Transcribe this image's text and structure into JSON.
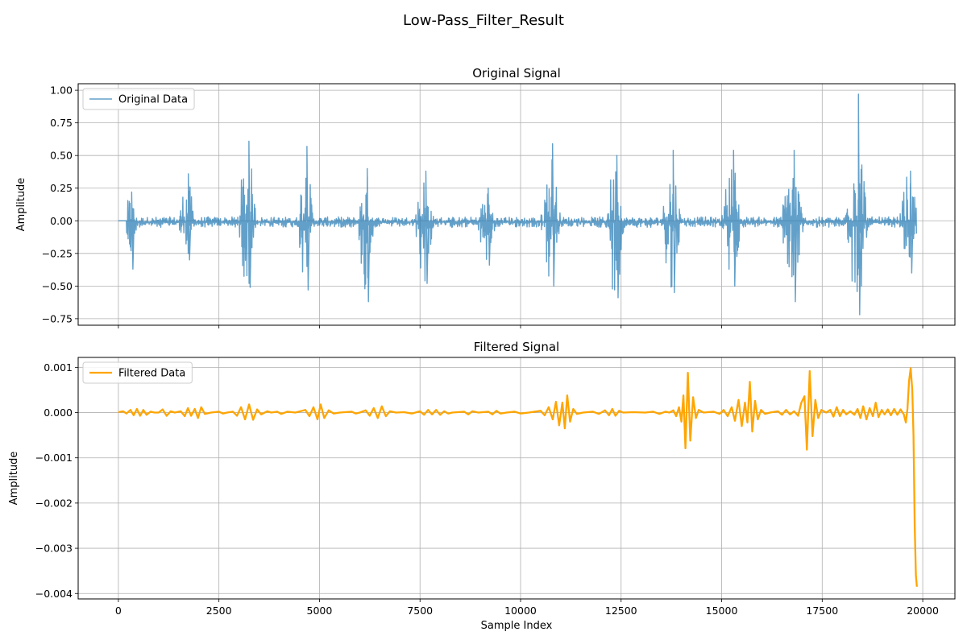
{
  "figure": {
    "suptitle": "Low-Pass_Filter_Result"
  },
  "colors": {
    "original": "#1f77b4",
    "filtered": "#ffa500",
    "grid": "#b0b0b0",
    "axes": "#000000",
    "legend_border": "#cccccc"
  },
  "chart_data": [
    {
      "type": "line",
      "title": "Original Signal",
      "xlabel": "",
      "ylabel": "Amplitude",
      "xlim": [
        -1000,
        20800
      ],
      "ylim": [
        -0.8,
        1.05
      ],
      "xticks": [
        0,
        2500,
        5000,
        7500,
        10000,
        12500,
        15000,
        17500,
        20000
      ],
      "xtick_labels": [],
      "yticks": [
        -0.75,
        -0.5,
        -0.25,
        0.0,
        0.25,
        0.5,
        0.75,
        1.0
      ],
      "ytick_labels": [
        "−0.75",
        "−0.50",
        "−0.25",
        "0.00",
        "0.25",
        "0.50",
        "0.75",
        "1.00"
      ],
      "grid": true,
      "legend": "upper-left",
      "series": [
        {
          "name": "Original Data",
          "color": "#1f77b4",
          "alpha": 0.7,
          "envelope": {
            "note": "approximate burst envelope read from plot",
            "x_start": 0,
            "x_end": 19850,
            "bursts": [
              {
                "center": 300,
                "width": 200,
                "high": 0.22,
                "low": -0.37
              },
              {
                "center": 1700,
                "width": 260,
                "high": 0.36,
                "low": -0.3
              },
              {
                "center": 3200,
                "width": 300,
                "high": 0.61,
                "low": -0.51
              },
              {
                "center": 4650,
                "width": 250,
                "high": 0.57,
                "low": -0.53
              },
              {
                "center": 6150,
                "width": 250,
                "high": 0.4,
                "low": -0.62
              },
              {
                "center": 7600,
                "width": 300,
                "high": 0.38,
                "low": -0.48
              },
              {
                "center": 9150,
                "width": 300,
                "high": 0.25,
                "low": -0.34
              },
              {
                "center": 10750,
                "width": 300,
                "high": 0.59,
                "low": -0.5
              },
              {
                "center": 12350,
                "width": 300,
                "high": 0.5,
                "low": -0.59
              },
              {
                "center": 13750,
                "width": 300,
                "high": 0.54,
                "low": -0.55
              },
              {
                "center": 15250,
                "width": 300,
                "high": 0.54,
                "low": -0.5
              },
              {
                "center": 16750,
                "width": 350,
                "high": 0.54,
                "low": -0.62
              },
              {
                "center": 18350,
                "width": 350,
                "high": 0.97,
                "low": -0.72
              },
              {
                "center": 19650,
                "width": 300,
                "high": 0.38,
                "low": -0.4
              }
            ],
            "baseline_noise": 0.04
          }
        }
      ]
    },
    {
      "type": "line",
      "title": "Filtered Signal",
      "xlabel": "Sample Index",
      "ylabel": "Amplitude",
      "xlim": [
        -1000,
        20800
      ],
      "ylim": [
        -0.00412,
        0.00122
      ],
      "xticks": [
        0,
        2500,
        5000,
        7500,
        10000,
        12500,
        15000,
        17500,
        20000
      ],
      "xtick_labels": [
        "0",
        "2500",
        "5000",
        "7500",
        "10000",
        "12500",
        "15000",
        "17500",
        "20000"
      ],
      "yticks": [
        -0.004,
        -0.003,
        -0.002,
        -0.001,
        0.0,
        0.001
      ],
      "ytick_labels": [
        "−0.004",
        "−0.003",
        "−0.002",
        "−0.001",
        "0.000",
        "0.001"
      ],
      "grid": true,
      "legend": "upper-left",
      "series": [
        {
          "name": "Filtered Data",
          "color": "#ffa500",
          "points": [
            [
              0,
              1e-05
            ],
            [
              120,
              3e-05
            ],
            [
              200,
              -2e-05
            ],
            [
              300,
              6e-05
            ],
            [
              380,
              -6e-05
            ],
            [
              460,
              8e-05
            ],
            [
              540,
              -7e-05
            ],
            [
              620,
              6e-05
            ],
            [
              700,
              -5e-05
            ],
            [
              800,
              2e-05
            ],
            [
              900,
              0.0
            ],
            [
              1000,
              0.0
            ],
            [
              1100,
              7e-05
            ],
            [
              1200,
              -7e-05
            ],
            [
              1300,
              3e-05
            ],
            [
              1400,
              0.0
            ],
            [
              1550,
              3e-05
            ],
            [
              1650,
              -8e-05
            ],
            [
              1730,
              0.0001
            ],
            [
              1810,
              -7e-05
            ],
            [
              1900,
              8e-05
            ],
            [
              1980,
              -0.00012
            ],
            [
              2060,
              0.00012
            ],
            [
              2150,
              -3e-05
            ],
            [
              2300,
              0.0
            ],
            [
              2500,
              2e-05
            ],
            [
              2600,
              -2e-05
            ],
            [
              2700,
              0.0
            ],
            [
              2850,
              2e-05
            ],
            [
              2950,
              -7e-05
            ],
            [
              3050,
              0.00012
            ],
            [
              3150,
              -0.00015
            ],
            [
              3250,
              0.00018
            ],
            [
              3350,
              -0.00016
            ],
            [
              3450,
              7e-05
            ],
            [
              3550,
              -4e-05
            ],
            [
              3700,
              3e-05
            ],
            [
              3800,
              0.0
            ],
            [
              3950,
              2e-05
            ],
            [
              4050,
              -3e-05
            ],
            [
              4200,
              2e-05
            ],
            [
              4400,
              0.0
            ],
            [
              4650,
              6e-05
            ],
            [
              4750,
              -8e-05
            ],
            [
              4850,
              0.00012
            ],
            [
              4950,
              -0.00015
            ],
            [
              5030,
              0.00018
            ],
            [
              5120,
              -0.00012
            ],
            [
              5230,
              5e-05
            ],
            [
              5350,
              -2e-05
            ],
            [
              5500,
              0.0
            ],
            [
              5800,
              2e-05
            ],
            [
              5900,
              -2e-05
            ],
            [
              6000,
              0.0
            ],
            [
              6150,
              5e-05
            ],
            [
              6250,
              -7e-05
            ],
            [
              6350,
              0.0001
            ],
            [
              6450,
              -0.00012
            ],
            [
              6550,
              0.00014
            ],
            [
              6650,
              -8e-05
            ],
            [
              6750,
              3e-05
            ],
            [
              6900,
              0.0
            ],
            [
              7100,
              1e-05
            ],
            [
              7300,
              -2e-05
            ],
            [
              7500,
              3e-05
            ],
            [
              7600,
              -5e-05
            ],
            [
              7700,
              6e-05
            ],
            [
              7800,
              -4e-05
            ],
            [
              7900,
              6e-05
            ],
            [
              8000,
              -5e-05
            ],
            [
              8100,
              3e-05
            ],
            [
              8200,
              -2e-05
            ],
            [
              8300,
              0.0
            ],
            [
              8600,
              2e-05
            ],
            [
              8700,
              -4e-05
            ],
            [
              8800,
              3e-05
            ],
            [
              8950,
              0.0
            ],
            [
              9200,
              2e-05
            ],
            [
              9300,
              -4e-05
            ],
            [
              9400,
              4e-05
            ],
            [
              9500,
              -2e-05
            ],
            [
              9650,
              0.0
            ],
            [
              9850,
              2e-05
            ],
            [
              10000,
              -2e-05
            ],
            [
              10200,
              0.0
            ],
            [
              10500,
              4e-05
            ],
            [
              10600,
              -6e-05
            ],
            [
              10700,
              0.00012
            ],
            [
              10800,
              -0.00015
            ],
            [
              10880,
              0.00024
            ],
            [
              10960,
              -0.00028
            ],
            [
              11040,
              0.00022
            ],
            [
              11100,
              -0.00035
            ],
            [
              11160,
              0.00038
            ],
            [
              11230,
              -0.0002
            ],
            [
              11310,
              8e-05
            ],
            [
              11400,
              -3e-05
            ],
            [
              11550,
              0.0
            ],
            [
              11800,
              2e-05
            ],
            [
              11950,
              -3e-05
            ],
            [
              12100,
              5e-05
            ],
            [
              12200,
              -6e-05
            ],
            [
              12280,
              8e-05
            ],
            [
              12360,
              -7e-05
            ],
            [
              12450,
              4e-05
            ],
            [
              12550,
              0.0
            ],
            [
              12800,
              1e-05
            ],
            [
              13100,
              0.0
            ],
            [
              13300,
              2e-05
            ],
            [
              13450,
              -3e-05
            ],
            [
              13600,
              2e-05
            ],
            [
              13700,
              0.0
            ],
            [
              13800,
              5e-05
            ],
            [
              13870,
              -8e-05
            ],
            [
              13940,
              0.00012
            ],
            [
              14000,
              -0.0002
            ],
            [
              14050,
              0.00038
            ],
            [
              14100,
              -0.00079
            ],
            [
              14160,
              0.00088
            ],
            [
              14220,
              -0.00062
            ],
            [
              14290,
              0.00034
            ],
            [
              14360,
              -0.00012
            ],
            [
              14430,
              6e-05
            ],
            [
              14550,
              0.0
            ],
            [
              14800,
              2e-05
            ],
            [
              14950,
              -3e-05
            ],
            [
              15050,
              6e-05
            ],
            [
              15150,
              -8e-05
            ],
            [
              15250,
              0.00012
            ],
            [
              15330,
              -0.00018
            ],
            [
              15420,
              0.00028
            ],
            [
              15500,
              -0.0003
            ],
            [
              15580,
              0.00022
            ],
            [
              15640,
              -0.00022
            ],
            [
              15700,
              0.00068
            ],
            [
              15760,
              -0.00042
            ],
            [
              15830,
              0.00026
            ],
            [
              15900,
              -0.00015
            ],
            [
              15980,
              6e-05
            ],
            [
              16080,
              -3e-05
            ],
            [
              16200,
              0.0
            ],
            [
              16400,
              3e-05
            ],
            [
              16500,
              -5e-05
            ],
            [
              16600,
              6e-05
            ],
            [
              16700,
              -4e-05
            ],
            [
              16800,
              3e-05
            ],
            [
              16900,
              -7e-05
            ],
            [
              16980,
              0.00022
            ],
            [
              17060,
              0.00036
            ],
            [
              17120,
              -0.00082
            ],
            [
              17190,
              0.00092
            ],
            [
              17260,
              -0.00052
            ],
            [
              17330,
              0.00028
            ],
            [
              17400,
              -0.00012
            ],
            [
              17480,
              6e-05
            ],
            [
              17600,
              0.0
            ],
            [
              17700,
              6e-05
            ],
            [
              17780,
              -9e-05
            ],
            [
              17860,
              0.00012
            ],
            [
              17940,
              -8e-05
            ],
            [
              18020,
              6e-05
            ],
            [
              18100,
              -4e-05
            ],
            [
              18200,
              3e-05
            ],
            [
              18300,
              -5e-05
            ],
            [
              18380,
              8e-05
            ],
            [
              18450,
              -0.00012
            ],
            [
              18520,
              0.00014
            ],
            [
              18600,
              -0.00015
            ],
            [
              18680,
              0.0001
            ],
            [
              18760,
              -8e-05
            ],
            [
              18830,
              0.00022
            ],
            [
              18900,
              -0.0001
            ],
            [
              18980,
              6e-05
            ],
            [
              19050,
              -4e-05
            ],
            [
              19130,
              7e-05
            ],
            [
              19210,
              -6e-05
            ],
            [
              19290,
              8e-05
            ],
            [
              19370,
              -5e-05
            ],
            [
              19450,
              7e-05
            ],
            [
              19530,
              -4e-05
            ],
            [
              19580,
              -0.00022
            ],
            [
              19620,
              8e-05
            ],
            [
              19660,
              0.0007
            ],
            [
              19700,
              0.00098
            ],
            [
              19740,
              0.0005
            ],
            [
              19770,
              -0.0005
            ],
            [
              19800,
              -0.0025
            ],
            [
              19830,
              -0.0036
            ],
            [
              19855,
              -0.00385
            ]
          ]
        }
      ]
    }
  ]
}
